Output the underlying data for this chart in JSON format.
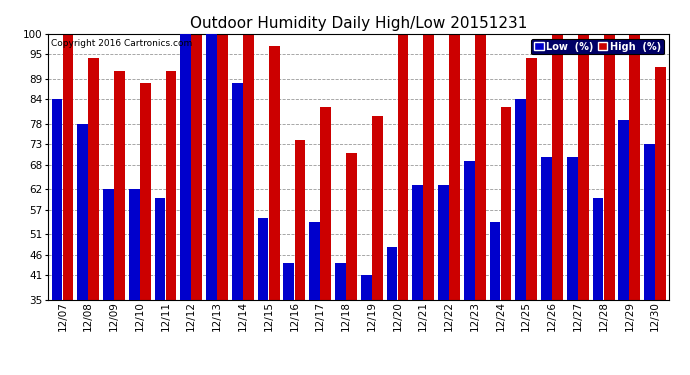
{
  "title": "Outdoor Humidity Daily High/Low 20151231",
  "copyright": "Copyright 2016 Cartronics.com",
  "dates": [
    "12/07",
    "12/08",
    "12/09",
    "12/10",
    "12/11",
    "12/12",
    "12/13",
    "12/14",
    "12/15",
    "12/16",
    "12/17",
    "12/18",
    "12/19",
    "12/20",
    "12/21",
    "12/22",
    "12/23",
    "12/24",
    "12/25",
    "12/26",
    "12/27",
    "12/28",
    "12/29",
    "12/30"
  ],
  "low_values": [
    84,
    78,
    62,
    62,
    60,
    100,
    100,
    88,
    55,
    44,
    54,
    44,
    41,
    48,
    63,
    63,
    69,
    54,
    84,
    70,
    70,
    60,
    79,
    73
  ],
  "high_values": [
    100,
    94,
    91,
    88,
    91,
    100,
    100,
    100,
    97,
    74,
    82,
    71,
    80,
    100,
    100,
    100,
    100,
    82,
    94,
    100,
    100,
    100,
    100,
    92
  ],
  "low_color": "#0000cc",
  "high_color": "#cc0000",
  "background_color": "#ffffff",
  "grid_color": "#999999",
  "ybase": 35,
  "ylim_min": 35,
  "ylim_max": 100,
  "yticks": [
    35,
    41,
    46,
    51,
    57,
    62,
    68,
    73,
    78,
    84,
    89,
    95,
    100
  ],
  "title_fontsize": 11,
  "tick_fontsize": 7.5,
  "legend_low_label": "Low  (%)",
  "legend_high_label": "High  (%)"
}
